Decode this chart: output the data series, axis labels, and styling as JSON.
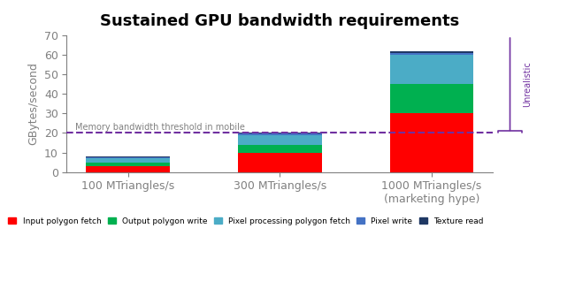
{
  "title": "Sustained GPU bandwidth requirements",
  "ylabel": "GBytes/second",
  "categories": [
    "100 MTriangles/s",
    "300 MTriangles/s",
    "1000 MTriangles/s\n(marketing hype)"
  ],
  "series": {
    "Input polygon fetch": [
      3.2,
      10.0,
      30.0
    ],
    "Output polygon write": [
      1.5,
      4.0,
      15.0
    ],
    "Pixel processing polygon fetch": [
      2.5,
      5.0,
      15.0
    ],
    "Pixel write": [
      0.4,
      0.7,
      1.0
    ],
    "Texture read": [
      0.4,
      0.7,
      1.0
    ]
  },
  "colors": {
    "Input polygon fetch": "#ff0000",
    "Output polygon write": "#00b050",
    "Pixel processing polygon fetch": "#4bacc6",
    "Pixel write": "#4472c4",
    "Texture read": "#1f3864"
  },
  "threshold": 20.0,
  "threshold_label": "Memory bandwidth threshold in mobile",
  "threshold_color": "#7030a0",
  "ylim": [
    0,
    70
  ],
  "yticks": [
    0,
    10,
    20,
    30,
    40,
    50,
    60,
    70
  ],
  "unrealistic_label": "Unrealistic",
  "unrealistic_color": "#7030a0",
  "background_color": "#ffffff",
  "bar_width": 0.55
}
